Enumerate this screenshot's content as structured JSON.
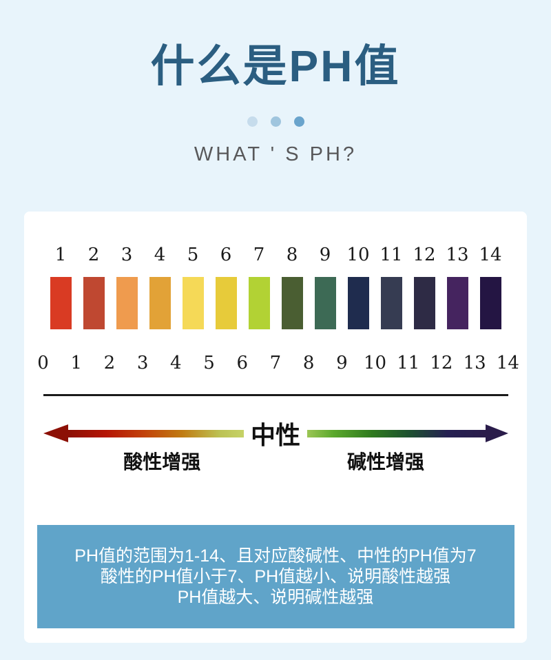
{
  "header": {
    "title": "什么是PH值",
    "subtitle": "WHAT ' S PH?",
    "dot_colors": [
      "#c6dcec",
      "#9fc5de",
      "#6aa4cc"
    ]
  },
  "colors": {
    "page_bg": "#e8f4fb",
    "panel_bg": "#ffffff",
    "title_color": "#2b5e81",
    "info_box_bg": "#60a4c9",
    "info_text": "#ffffff",
    "ruler_ink": "#1a1a1a"
  },
  "swatch_scale": {
    "items": [
      {
        "label": "1",
        "color": "#d93b23"
      },
      {
        "label": "2",
        "color": "#bf4831"
      },
      {
        "label": "3",
        "color": "#ef9b4e"
      },
      {
        "label": "4",
        "color": "#e2a237"
      },
      {
        "label": "5",
        "color": "#f5d957"
      },
      {
        "label": "6",
        "color": "#e7cb3a"
      },
      {
        "label": "7",
        "color": "#b2d234"
      },
      {
        "label": "8",
        "color": "#4a5e32"
      },
      {
        "label": "9",
        "color": "#3d6a55"
      },
      {
        "label": "10",
        "color": "#1f2c4e"
      },
      {
        "label": "11",
        "color": "#363c52"
      },
      {
        "label": "12",
        "color": "#2e2b45"
      },
      {
        "label": "13",
        "color": "#45245f"
      },
      {
        "label": "14",
        "color": "#241543"
      }
    ]
  },
  "ruler": {
    "tick_labels": [
      "0",
      "1",
      "2",
      "3",
      "4",
      "5",
      "6",
      "7",
      "8",
      "9",
      "10",
      "11",
      "12",
      "13",
      "14"
    ],
    "neutral_value": "7"
  },
  "gradient_axis": {
    "neutral_label": "中性",
    "acid_label": "酸性增强",
    "base_label": "碱性增强",
    "gradient_stops": [
      "#8c1005",
      "#b51505",
      "#c2420a",
      "#c07b12",
      "#bcc254",
      "#cbdc72",
      "#b7d266",
      "#5aa82c",
      "#2f7a1e",
      "#1d5030",
      "#252052",
      "#2a1c4a"
    ]
  },
  "info_box": {
    "lines": [
      "PH值的范围为1-14、且对应酸碱性、中性的PH值为7",
      "酸性的PH值小于7、PH值越小、说明酸性越强",
      "PH值越大、说明碱性越强"
    ]
  }
}
